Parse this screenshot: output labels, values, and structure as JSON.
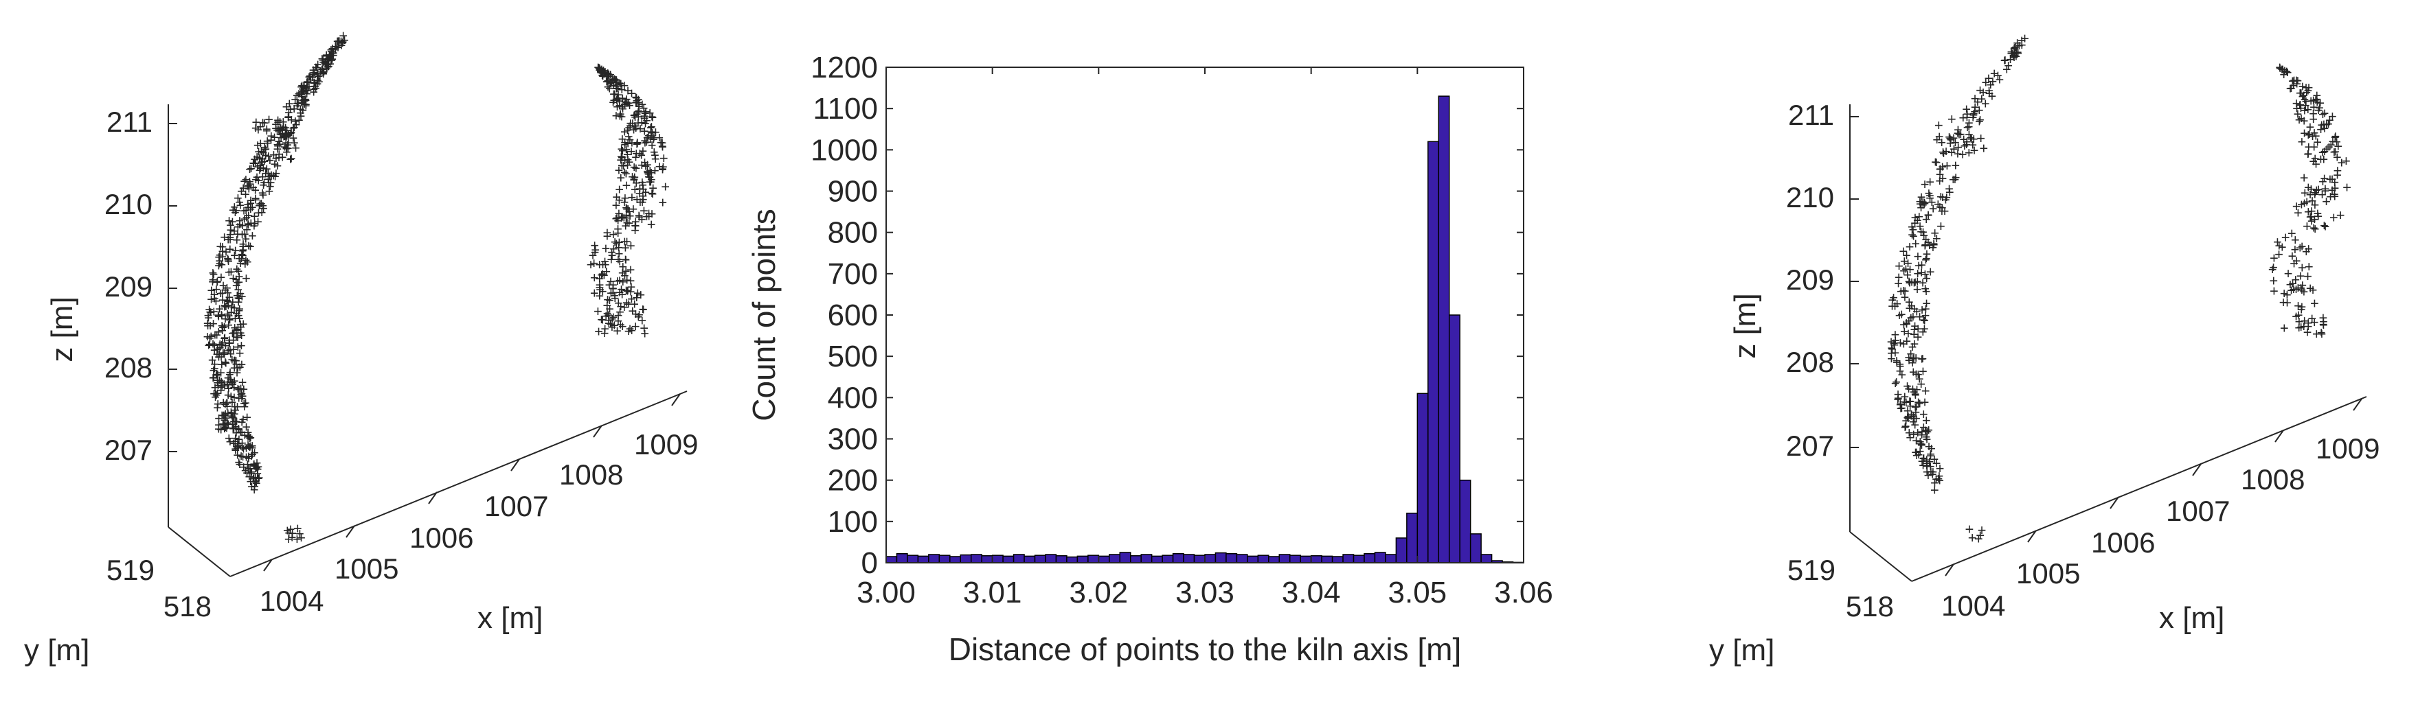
{
  "colors": {
    "points": "#00f000",
    "bars": "#3a1ea8",
    "axis": "#262626"
  },
  "left_plot": {
    "z_label": "z [m]",
    "x_label": "x [m]",
    "y_label": "y [m]",
    "z_ticks": [
      "211",
      "210",
      "209",
      "208",
      "207"
    ],
    "y_ticks": [
      "519",
      "518"
    ],
    "x_ticks": [
      "1004",
      "1005",
      "1006",
      "1007",
      "1008",
      "1009"
    ]
  },
  "right_plot": {
    "z_label": "z [m]",
    "x_label": "x [m]",
    "y_label": "y [m]",
    "z_ticks": [
      "211",
      "210",
      "209",
      "208",
      "207"
    ],
    "y_ticks": [
      "519",
      "518"
    ],
    "x_ticks": [
      "1004",
      "1005",
      "1006",
      "1007",
      "1008",
      "1009"
    ]
  },
  "chart_data": [
    {
      "type": "scatter",
      "panel": "left",
      "marker": "+",
      "xlabel": "x [m]",
      "ylabel": "y [m]",
      "zlabel": "z [m]",
      "xlim": [
        1003.5,
        1009.5
      ],
      "ylim": [
        518,
        519
      ],
      "zlim": [
        206.5,
        211.5
      ],
      "series": [
        {
          "values": "dense point cloud: arc from z 206.6 to 211.8 near x 1003.6–1005; upper-right arc near x 1008.5–1009.5, z 208.8–211.5"
        }
      ]
    },
    {
      "type": "bar",
      "panel": "middle",
      "title": "",
      "xlabel": "Distance of points to the kiln axis [m]",
      "ylabel": "Count of points",
      "xlim": [
        3.0,
        3.06
      ],
      "ylim": [
        0,
        1200
      ],
      "x_ticks": [
        "3.00",
        "3.01",
        "3.02",
        "3.03",
        "3.04",
        "3.05",
        "3.06"
      ],
      "y_ticks": [
        "0",
        "100",
        "200",
        "300",
        "400",
        "500",
        "600",
        "700",
        "800",
        "900",
        "1000",
        "1100",
        "1200"
      ],
      "bin_width": 0.001,
      "bin_start": 3.0,
      "values": [
        15,
        22,
        18,
        16,
        20,
        18,
        15,
        19,
        20,
        17,
        18,
        16,
        20,
        16,
        18,
        20,
        17,
        14,
        16,
        18,
        16,
        20,
        25,
        17,
        20,
        16,
        18,
        22,
        20,
        18,
        20,
        24,
        22,
        20,
        16,
        18,
        15,
        20,
        18,
        16,
        17,
        16,
        15,
        20,
        18,
        22,
        25,
        20,
        60,
        120,
        410,
        1020,
        1130,
        600,
        200,
        70,
        20,
        5,
        2,
        1
      ]
    },
    {
      "type": "scatter",
      "panel": "right",
      "marker": "+",
      "xlabel": "x [m]",
      "ylabel": "y [m]",
      "zlabel": "z [m]",
      "xlim": [
        1003.5,
        1009.5
      ],
      "ylim": [
        518,
        519
      ],
      "zlim": [
        206.5,
        211.5
      ],
      "series": [
        {
          "values": "sparser point cloud: arc from z 206.6 to 211.0 near x 1003.6–1005; upper-right arc near x 1008.5–1009.5, z 208.6–211.5"
        }
      ]
    }
  ],
  "histogram": {
    "xlabel": "Distance of points to the kiln axis [m]",
    "ylabel": "Count of points"
  }
}
